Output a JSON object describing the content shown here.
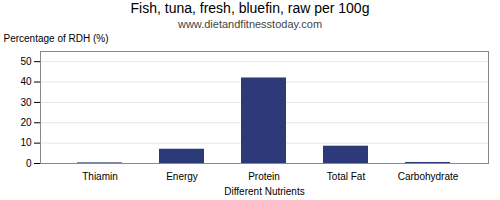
{
  "chart_data": {
    "type": "bar",
    "title": "Fish, tuna, fresh, bluefin, raw per 100g",
    "subtitle": "www.dietandfitnesstoday.com",
    "xlabel": "Different Nutrients",
    "ylabel": "Percentage of RDH (%)",
    "categories": [
      "Thiamin",
      "Energy",
      "Protein",
      "Total Fat",
      "Carbohydrate"
    ],
    "values": [
      0.3,
      7.0,
      42.0,
      8.5,
      0.5
    ],
    "color": "#2d3a7a",
    "ylim": [
      0,
      55
    ],
    "yticks": [
      0,
      10,
      20,
      30,
      40,
      50
    ],
    "grid": true
  }
}
